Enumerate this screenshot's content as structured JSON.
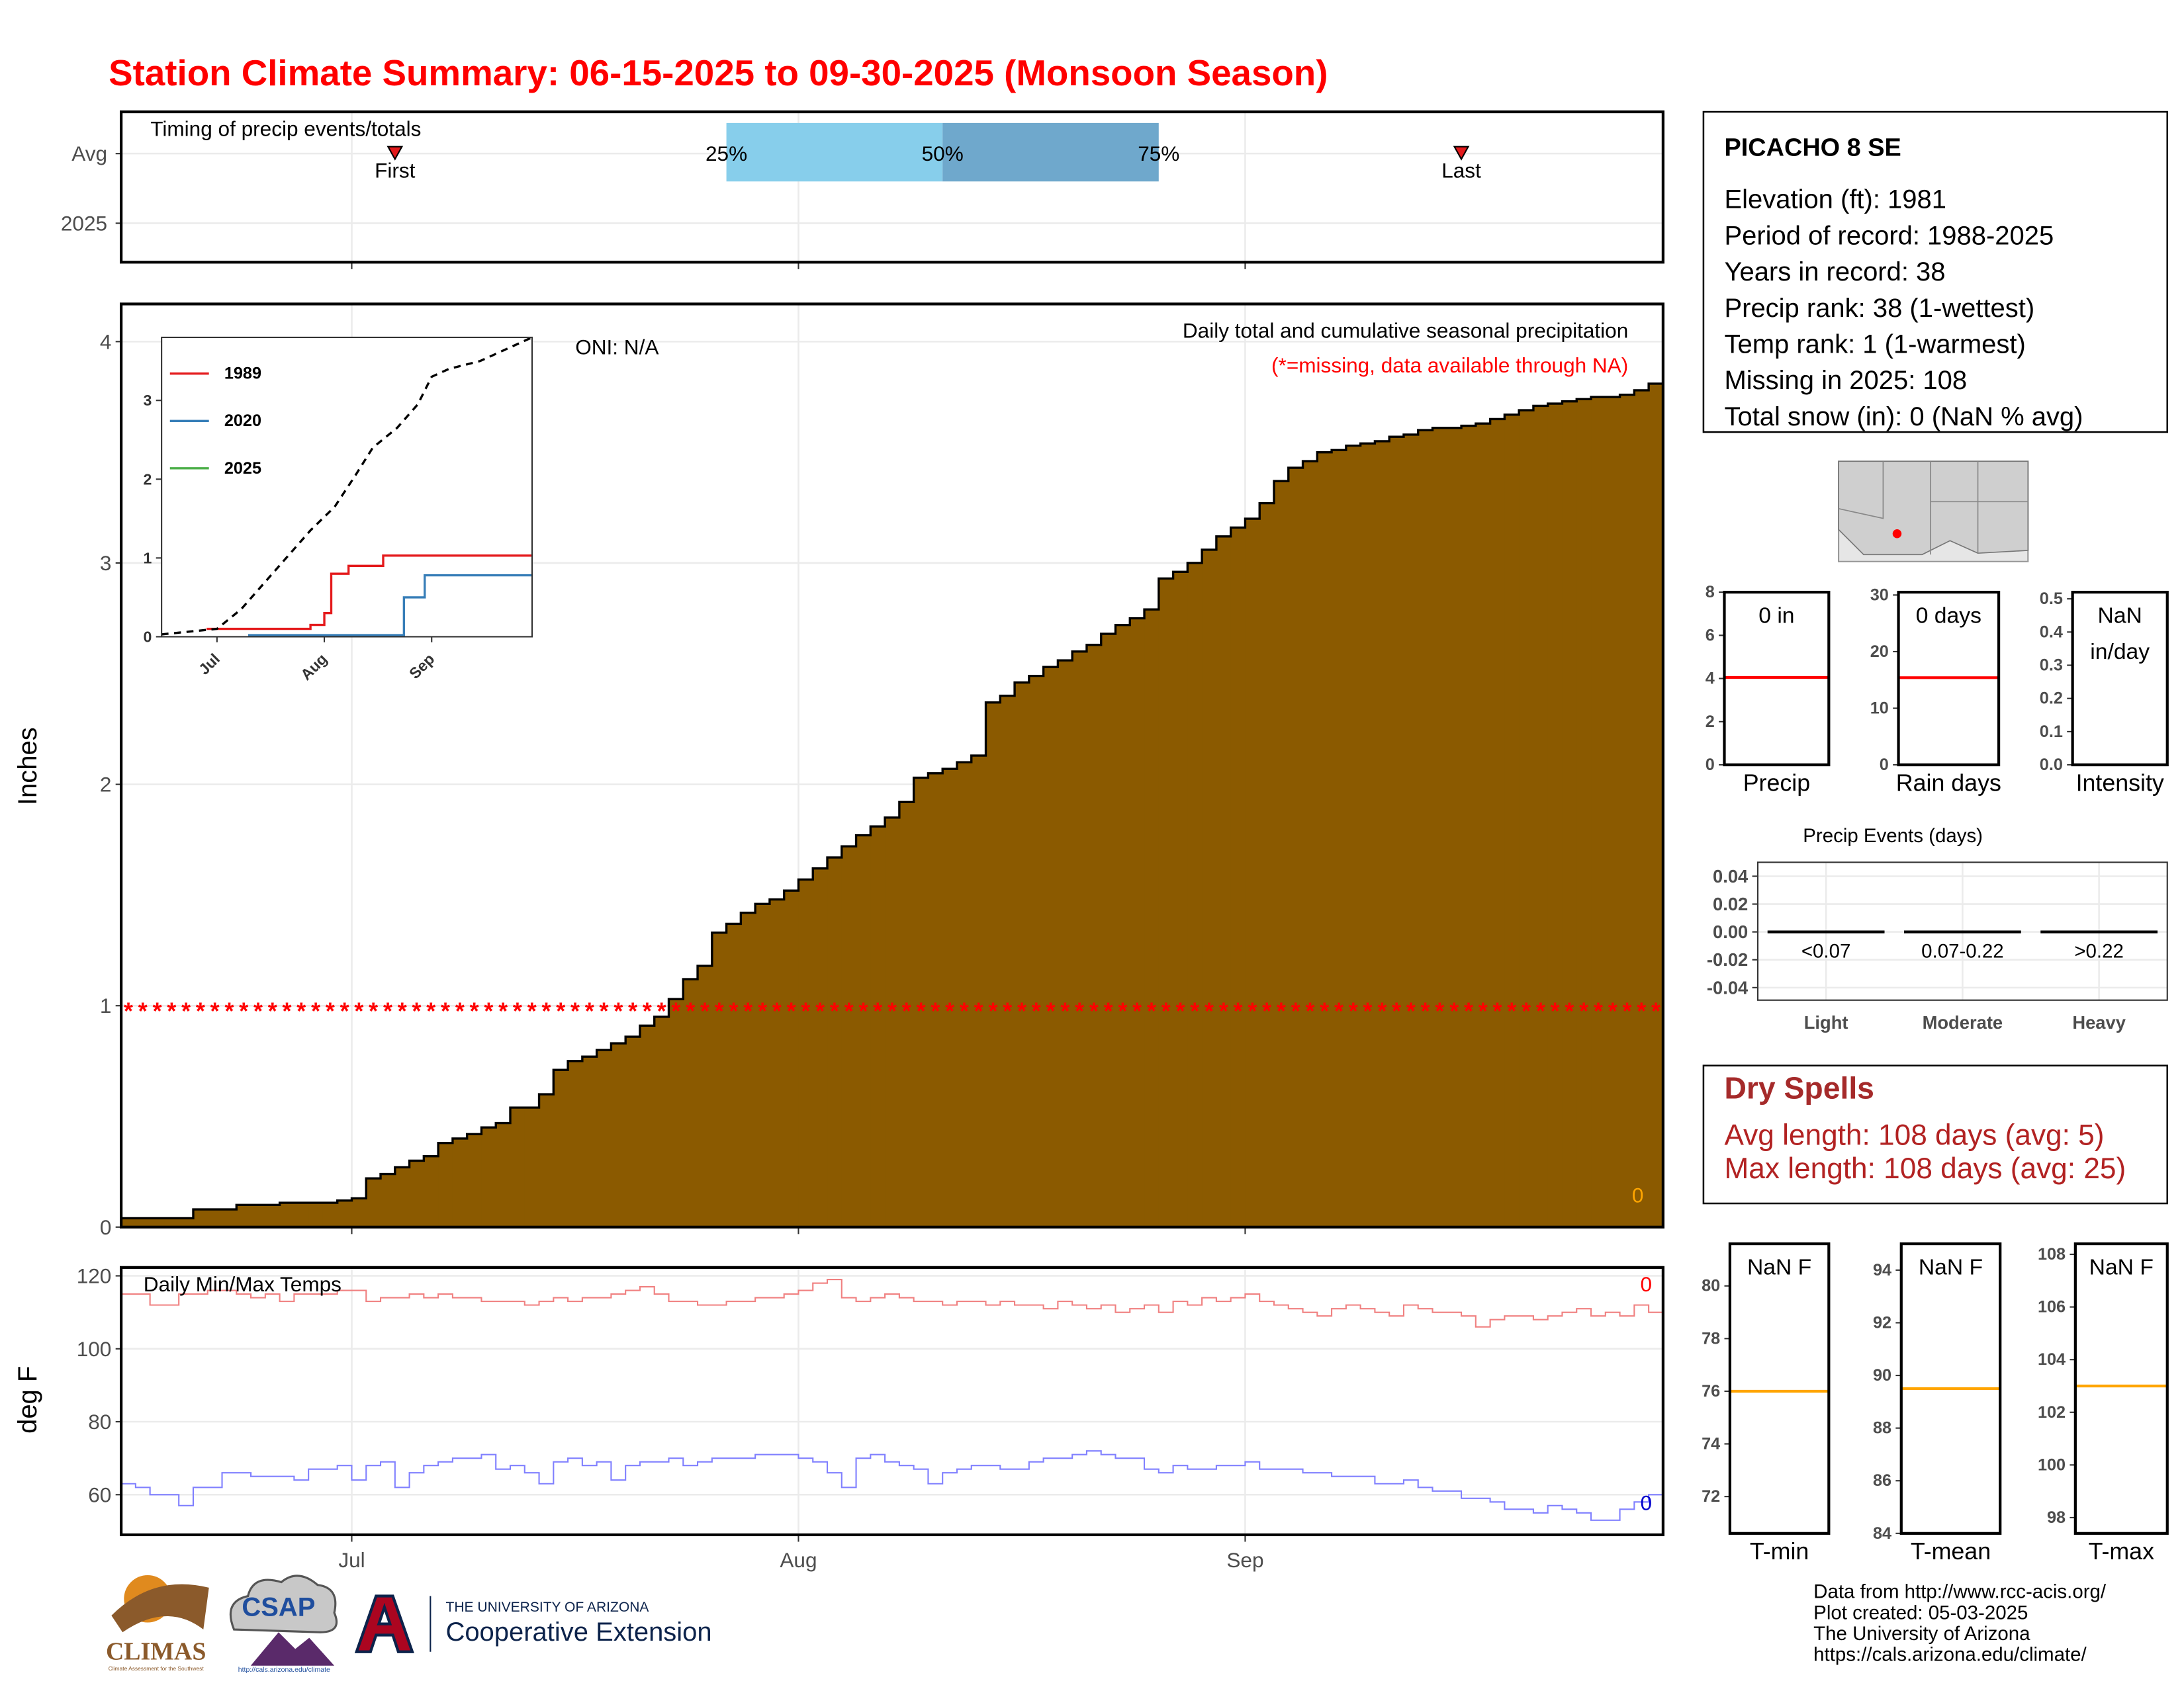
{
  "title": "Station Climate Summary: 06-15-2025 to 09-30-2025 (Monsoon Season)",
  "station": {
    "name": "PICACHO 8 SE",
    "lines": [
      "Elevation (ft): 1981",
      "Period of record: 1988-2025",
      "Years in record: 38",
      "Precip rank: 38 (1-wettest)",
      "Temp rank: 1 (1-warmest)",
      "Missing in 2025: 108",
      "Total snow (in): 0 (NaN % avg)"
    ]
  },
  "dry_spells": {
    "title": "Dry Spells",
    "lines": [
      "Avg length: 108 days (avg: 5)",
      "Max length: 108 days (avg: 25)"
    ]
  },
  "footer": [
    "Data from http://www.rcc-acis.org/",
    "Plot created: 05-03-2025",
    "The University of Arizona",
    "https://cals.arizona.edu/climate/"
  ],
  "logos": {
    "climas": "CLIMAS",
    "climas_tagline": "Climate Assessment for the Southwest",
    "csap": "CSAP",
    "csap_url": "http://cals.arizona.edu/climate",
    "ua": "THE UNIVERSITY OF ARIZONA",
    "extension": "Cooperative Extension"
  },
  "chart_data": [
    {
      "type": "timeline",
      "title": "Timing of precip events/totals",
      "categories": [
        "Avg",
        "2025"
      ],
      "events": [
        {
          "label": "First",
          "x": "07-04"
        },
        {
          "label": "Last",
          "x": "09-16"
        }
      ],
      "quartiles": [
        {
          "label": "25%",
          "x": "07-27"
        },
        {
          "label": "50%",
          "x": "08-11"
        },
        {
          "label": "75%",
          "x": "08-26"
        }
      ],
      "colors": [
        "#87ceeb",
        "#6fa8cc"
      ],
      "marker_color": "#e31a1c",
      "grid": true
    },
    {
      "type": "step-area",
      "title": "Daily total and cumulative seasonal precipitation",
      "note": "(*=missing, data available through NA)",
      "annotation": "ONI: N/A",
      "end_label": "0",
      "ylabel": "Inches",
      "ylim": [
        0,
        4.17
      ],
      "yticks": [
        0,
        1,
        2,
        3,
        4
      ],
      "color": "#8b5a00",
      "grid": true,
      "missing_marker": {
        "value": 1,
        "label": "*",
        "color": "#ff0000"
      },
      "x": [
        "06-15",
        "06-16",
        "06-17",
        "06-18",
        "06-19",
        "06-20",
        "06-21",
        "06-22",
        "06-23",
        "06-24",
        "06-25",
        "06-26",
        "06-27",
        "06-28",
        "06-29",
        "06-30",
        "07-01",
        "07-02",
        "07-03",
        "07-04",
        "07-05",
        "07-06",
        "07-07",
        "07-08",
        "07-09",
        "07-10",
        "07-11",
        "07-12",
        "07-13",
        "07-14",
        "07-15",
        "07-16",
        "07-17",
        "07-18",
        "07-19",
        "07-20",
        "07-21",
        "07-22",
        "07-23",
        "07-24",
        "07-25",
        "07-26",
        "07-27",
        "07-28",
        "07-29",
        "07-30",
        "07-31",
        "08-01",
        "08-02",
        "08-03",
        "08-04",
        "08-05",
        "08-06",
        "08-07",
        "08-08",
        "08-09",
        "08-10",
        "08-11",
        "08-12",
        "08-13",
        "08-14",
        "08-15",
        "08-16",
        "08-17",
        "08-18",
        "08-19",
        "08-20",
        "08-21",
        "08-22",
        "08-23",
        "08-24",
        "08-25",
        "08-26",
        "08-27",
        "08-28",
        "08-29",
        "08-30",
        "08-31",
        "09-01",
        "09-02",
        "09-03",
        "09-04",
        "09-05",
        "09-06",
        "09-07",
        "09-08",
        "09-09",
        "09-10",
        "09-11",
        "09-12",
        "09-13",
        "09-14",
        "09-15",
        "09-16",
        "09-17",
        "09-18",
        "09-19",
        "09-20",
        "09-21",
        "09-22",
        "09-23",
        "09-24",
        "09-25",
        "09-26",
        "09-27",
        "09-28",
        "09-29"
      ],
      "values": [
        0.04,
        0.04,
        0.04,
        0.04,
        0.04,
        0.08,
        0.08,
        0.08,
        0.1,
        0.1,
        0.1,
        0.11,
        0.11,
        0.11,
        0.11,
        0.12,
        0.13,
        0.22,
        0.24,
        0.27,
        0.3,
        0.32,
        0.38,
        0.4,
        0.42,
        0.45,
        0.47,
        0.54,
        0.54,
        0.6,
        0.71,
        0.75,
        0.77,
        0.8,
        0.83,
        0.86,
        0.91,
        0.95,
        1.03,
        1.12,
        1.18,
        1.33,
        1.37,
        1.42,
        1.46,
        1.48,
        1.52,
        1.57,
        1.62,
        1.67,
        1.72,
        1.77,
        1.81,
        1.85,
        1.92,
        2.03,
        2.05,
        2.07,
        2.1,
        2.13,
        2.37,
        2.4,
        2.46,
        2.49,
        2.53,
        2.56,
        2.6,
        2.63,
        2.68,
        2.72,
        2.75,
        2.79,
        2.93,
        2.96,
        3.0,
        3.06,
        3.12,
        3.16,
        3.2,
        3.27,
        3.37,
        3.43,
        3.46,
        3.5,
        3.51,
        3.53,
        3.54,
        3.55,
        3.57,
        3.58,
        3.6,
        3.61,
        3.61,
        3.62,
        3.63,
        3.65,
        3.67,
        3.69,
        3.71,
        3.72,
        3.73,
        3.74,
        3.75,
        3.75,
        3.76,
        3.78,
        3.81
      ]
    },
    {
      "type": "line",
      "xlim": [
        "06-15",
        "09-30"
      ],
      "xticks": [
        {
          "value": "07-01",
          "label": "Jul"
        },
        {
          "value": "08-01",
          "label": "Aug"
        },
        {
          "value": "09-01",
          "label": "Sep"
        }
      ],
      "ylim": [
        0,
        3.8
      ],
      "yticks": [
        0,
        1,
        2,
        3
      ],
      "series": [
        {
          "name": "1989",
          "color": "#e41a1c",
          "step": true,
          "x": [
            "06-28",
            "07-28",
            "08-01",
            "08-03",
            "08-08",
            "08-18",
            "09-30"
          ],
          "values": [
            0.1,
            0.15,
            0.3,
            0.8,
            0.9,
            1.03,
            1.03
          ]
        },
        {
          "name": "2020",
          "color": "#377eb8",
          "step": true,
          "x": [
            "07-10",
            "08-24",
            "08-30",
            "09-30"
          ],
          "values": [
            0.02,
            0.5,
            0.78,
            0.78
          ]
        },
        {
          "name": "2025",
          "color": "#4daf4a",
          "step": true,
          "x": [],
          "values": []
        },
        {
          "color": "#000000",
          "dash": true,
          "x": [
            "06-15",
            "07-01",
            "07-08",
            "07-15",
            "07-22",
            "07-28",
            "08-04",
            "08-10",
            "08-15",
            "08-22",
            "08-28",
            "09-01",
            "09-06",
            "09-15",
            "09-30"
          ],
          "values": [
            0.03,
            0.1,
            0.35,
            0.7,
            1.05,
            1.35,
            1.65,
            2.05,
            2.4,
            2.65,
            2.95,
            3.3,
            3.4,
            3.5,
            3.8
          ]
        }
      ]
    },
    {
      "type": "step-line",
      "title": "Daily Min/Max Temps",
      "ylabel": "deg F",
      "ylim": [
        49,
        122.3
      ],
      "yticks": [
        60,
        80,
        100,
        120
      ],
      "grid": true,
      "xlim": [
        "06-15",
        "09-30"
      ],
      "xticks": [
        {
          "value": "07-01",
          "label": "Jul"
        },
        {
          "value": "08-01",
          "label": "Aug"
        },
        {
          "value": "09-01",
          "label": "Sep"
        }
      ],
      "x": [
        "06-15",
        "06-16",
        "06-17",
        "06-18",
        "06-19",
        "06-20",
        "06-21",
        "06-22",
        "06-23",
        "06-24",
        "06-25",
        "06-26",
        "06-27",
        "06-28",
        "06-29",
        "06-30",
        "07-01",
        "07-02",
        "07-03",
        "07-04",
        "07-05",
        "07-06",
        "07-07",
        "07-08",
        "07-09",
        "07-10",
        "07-11",
        "07-12",
        "07-13",
        "07-14",
        "07-15",
        "07-16",
        "07-17",
        "07-18",
        "07-19",
        "07-20",
        "07-21",
        "07-22",
        "07-23",
        "07-24",
        "07-25",
        "07-26",
        "07-27",
        "07-28",
        "07-29",
        "07-30",
        "07-31",
        "08-01",
        "08-02",
        "08-03",
        "08-04",
        "08-05",
        "08-06",
        "08-07",
        "08-08",
        "08-09",
        "08-10",
        "08-11",
        "08-12",
        "08-13",
        "08-14",
        "08-15",
        "08-16",
        "08-17",
        "08-18",
        "08-19",
        "08-20",
        "08-21",
        "08-22",
        "08-23",
        "08-24",
        "08-25",
        "08-26",
        "08-27",
        "08-28",
        "08-29",
        "08-30",
        "08-31",
        "09-01",
        "09-02",
        "09-03",
        "09-04",
        "09-05",
        "09-06",
        "09-07",
        "09-08",
        "09-09",
        "09-10",
        "09-11",
        "09-12",
        "09-13",
        "09-14",
        "09-15",
        "09-16",
        "09-17",
        "09-18",
        "09-19",
        "09-20",
        "09-21",
        "09-22",
        "09-23",
        "09-24",
        "09-25",
        "09-26",
        "09-27",
        "09-28",
        "09-29"
      ],
      "series": [
        {
          "color": "#f08080",
          "end_label": "0",
          "end_color": "#ff0000",
          "values": [
            115,
            115,
            112,
            112,
            115,
            115,
            116,
            116,
            115,
            114,
            115,
            113,
            115,
            115,
            115,
            116,
            116,
            113,
            114,
            114,
            115,
            114,
            115,
            114,
            114,
            113,
            113,
            113,
            112,
            113,
            114,
            113,
            114,
            114,
            115,
            116,
            117,
            115,
            113,
            113,
            112,
            112,
            113,
            113,
            114,
            114,
            115,
            116,
            118,
            119,
            114,
            113,
            114,
            115,
            114,
            113,
            113,
            112,
            113,
            113,
            112,
            113,
            112,
            112,
            111,
            113,
            112,
            111,
            112,
            110,
            111,
            112,
            110,
            113,
            112,
            114,
            113,
            114,
            115,
            113,
            112,
            111,
            110,
            109,
            111,
            112,
            111,
            110,
            109,
            112,
            111,
            110,
            110,
            109,
            106,
            108,
            109,
            109,
            108,
            109,
            110,
            111,
            109,
            110,
            109,
            112,
            110
          ]
        },
        {
          "color": "#8080ff",
          "end_label": "0",
          "end_color": "#0000cc",
          "values": [
            63,
            62,
            60,
            60,
            57,
            62,
            62,
            66,
            66,
            65,
            65,
            65,
            64,
            67,
            67,
            68,
            64,
            68,
            69,
            62,
            66,
            68,
            69,
            70,
            70,
            71,
            67,
            68,
            66,
            63,
            69,
            70,
            68,
            69,
            64,
            68,
            69,
            69,
            70,
            68,
            69,
            70,
            70,
            70,
            71,
            71,
            71,
            70,
            69,
            66,
            62,
            70,
            71,
            69,
            68,
            67,
            63,
            66,
            67,
            68,
            68,
            67,
            67,
            69,
            70,
            70,
            71,
            72,
            71,
            70,
            70,
            67,
            66,
            68,
            67,
            67,
            68,
            68,
            69,
            67,
            67,
            67,
            66,
            66,
            65,
            65,
            65,
            63,
            63,
            64,
            62,
            61,
            61,
            59,
            59,
            58,
            56,
            56,
            55,
            57,
            56,
            55,
            53,
            53,
            56,
            58,
            60
          ]
        }
      ]
    },
    {
      "type": "reference",
      "label": "Precip",
      "value_label": [
        "0 in"
      ],
      "ylim": [
        0,
        8
      ],
      "yticks": [
        0,
        2,
        4,
        6,
        8
      ],
      "reference": 4.05,
      "color": "#ff0000"
    },
    {
      "type": "reference",
      "label": "Rain days",
      "value_label": [
        "0 days"
      ],
      "ylim": [
        0,
        30.5
      ],
      "yticks": [
        0,
        10,
        20,
        30
      ],
      "reference": 15.4,
      "color": "#ff0000"
    },
    {
      "type": "reference",
      "label": "Intensity",
      "value_label": [
        "NaN",
        "in/day"
      ],
      "ylim": [
        0,
        0.52
      ],
      "yticks": [
        {
          "value": 0,
          "label": "0.0"
        },
        0.1,
        0.2,
        0.3,
        0.4,
        0.5
      ]
    },
    {
      "type": "events",
      "title": "Precip Events (days)",
      "categories": [
        "Light",
        "Moderate",
        "Heavy"
      ],
      "sublabels": [
        "<0.07",
        "0.07-0.22",
        ">0.22"
      ],
      "values": [
        0,
        0,
        0
      ],
      "ylim": [
        -0.049,
        0.05
      ],
      "yticks": [
        0.04,
        0.02,
        {
          "value": 0,
          "label": "0.00"
        },
        -0.02,
        -0.04
      ],
      "grid": true
    },
    {
      "type": "reference",
      "label": "T-min",
      "value_label": [
        "NaN F"
      ],
      "ylim": [
        70.6,
        81.6
      ],
      "yticks": [
        72,
        74,
        76,
        78,
        80
      ],
      "reference": 76,
      "color": "#ffa500"
    },
    {
      "type": "reference",
      "label": "T-mean",
      "value_label": [
        "NaN F"
      ],
      "ylim": [
        84,
        95
      ],
      "yticks": [
        84,
        86,
        88,
        90,
        92,
        94
      ],
      "reference": 89.5,
      "color": "#ffa500"
    },
    {
      "type": "reference",
      "label": "T-max",
      "value_label": [
        "NaN F"
      ],
      "ylim": [
        97.4,
        108.4
      ],
      "yticks": [
        98,
        100,
        102,
        104,
        106,
        108
      ],
      "reference": 103,
      "color": "#ffa500"
    }
  ]
}
